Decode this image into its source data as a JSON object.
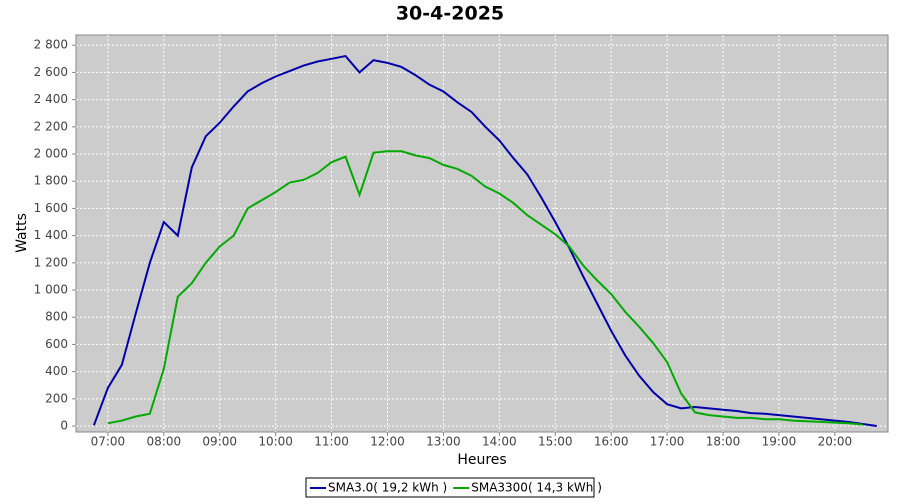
{
  "chart_data": {
    "type": "line",
    "title": "30-4-2025",
    "x_label": "Heures",
    "y_label": "Watts",
    "x": [
      6.75,
      7.0,
      7.25,
      7.5,
      7.75,
      8.0,
      8.25,
      8.5,
      8.75,
      9.0,
      9.25,
      9.5,
      9.75,
      10.0,
      10.25,
      10.5,
      10.75,
      11.0,
      11.25,
      11.5,
      11.75,
      12.0,
      12.25,
      12.5,
      12.75,
      13.0,
      13.25,
      13.5,
      13.75,
      14.0,
      14.25,
      14.5,
      14.75,
      15.0,
      15.25,
      15.5,
      15.75,
      16.0,
      16.25,
      16.5,
      16.75,
      17.0,
      17.25,
      17.5,
      17.75,
      18.0,
      18.25,
      18.5,
      18.75,
      19.0,
      19.25,
      19.5,
      19.75,
      20.0,
      20.25,
      20.5,
      20.75
    ],
    "series": [
      {
        "name": "SMA3.0( 19,2 kWh )",
        "color": "#0000aa",
        "values": [
          5,
          280,
          450,
          830,
          1200,
          1500,
          1400,
          1900,
          2130,
          2230,
          2350,
          2460,
          2520,
          2570,
          2610,
          2650,
          2680,
          2700,
          2720,
          2600,
          2690,
          2670,
          2640,
          2580,
          2510,
          2460,
          2380,
          2310,
          2200,
          2100,
          1970,
          1850,
          1680,
          1500,
          1310,
          1100,
          900,
          700,
          520,
          370,
          250,
          160,
          130,
          140,
          130,
          120,
          110,
          95,
          90,
          80,
          70,
          60,
          50,
          40,
          30,
          15,
          0
        ]
      },
      {
        "name": "SMA3300( 14,3 kWh )",
        "color": "#00aa00",
        "values": [
          null,
          20,
          40,
          70,
          90,
          420,
          950,
          1050,
          1200,
          1320,
          1400,
          1600,
          1660,
          1720,
          1790,
          1810,
          1860,
          1940,
          1980,
          1700,
          2010,
          2020,
          2020,
          1990,
          1970,
          1920,
          1890,
          1840,
          1760,
          1710,
          1640,
          1550,
          1480,
          1410,
          1320,
          1180,
          1070,
          970,
          840,
          730,
          610,
          470,
          240,
          100,
          80,
          70,
          60,
          60,
          50,
          50,
          40,
          35,
          30,
          25,
          20,
          10,
          null
        ]
      }
    ],
    "xlim": [
      6.43,
      20.95
    ],
    "ylim": [
      -44,
      2875
    ],
    "xticks": [
      {
        "value": 7,
        "label": "07:00"
      },
      {
        "value": 8,
        "label": "08:00"
      },
      {
        "value": 9,
        "label": "09:00"
      },
      {
        "value": 10,
        "label": "10:00"
      },
      {
        "value": 11,
        "label": "11:00"
      },
      {
        "value": 12,
        "label": "12:00"
      },
      {
        "value": 13,
        "label": "13:00"
      },
      {
        "value": 14,
        "label": "14:00"
      },
      {
        "value": 15,
        "label": "15:00"
      },
      {
        "value": 16,
        "label": "16:00"
      },
      {
        "value": 17,
        "label": "17:00"
      },
      {
        "value": 18,
        "label": "18:00"
      },
      {
        "value": 19,
        "label": "19:00"
      },
      {
        "value": 20,
        "label": "20:00"
      }
    ],
    "yticks": [
      0,
      200,
      400,
      600,
      800,
      {
        "value": 1000,
        "label": "1 000"
      },
      {
        "value": 1200,
        "label": "1 200"
      },
      {
        "value": 1400,
        "label": "1 400"
      },
      {
        "value": 1600,
        "label": "1 600"
      },
      {
        "value": 1800,
        "label": "1 800"
      },
      {
        "value": 2000,
        "label": "2 000"
      },
      {
        "value": 2200,
        "label": "2 200"
      },
      {
        "value": 2400,
        "label": "2 400"
      },
      {
        "value": 2600,
        "label": "2 600"
      },
      {
        "value": 2800,
        "label": "2 800"
      }
    ],
    "grid": true
  }
}
